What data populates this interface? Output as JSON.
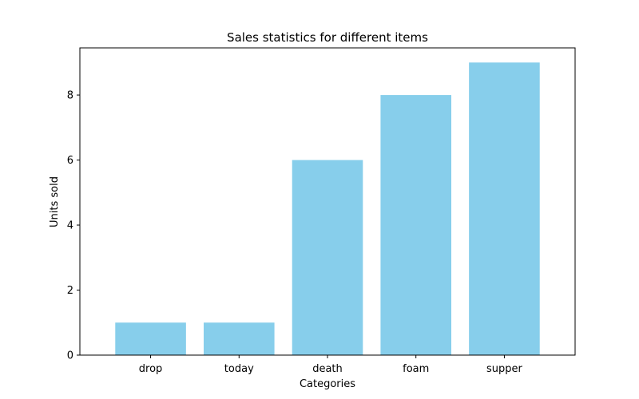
{
  "chart_data": {
    "type": "bar",
    "title": "Sales statistics for different items",
    "xlabel": "Categories",
    "ylabel": "Units sold",
    "categories": [
      "drop",
      "today",
      "death",
      "foam",
      "supper"
    ],
    "values": [
      1,
      1,
      6,
      8,
      9
    ],
    "ylim": [
      0,
      9.45
    ],
    "yticks": [
      0,
      2,
      4,
      6,
      8
    ],
    "bar_color": "#87ceeb",
    "grid": false,
    "legend": "none"
  }
}
